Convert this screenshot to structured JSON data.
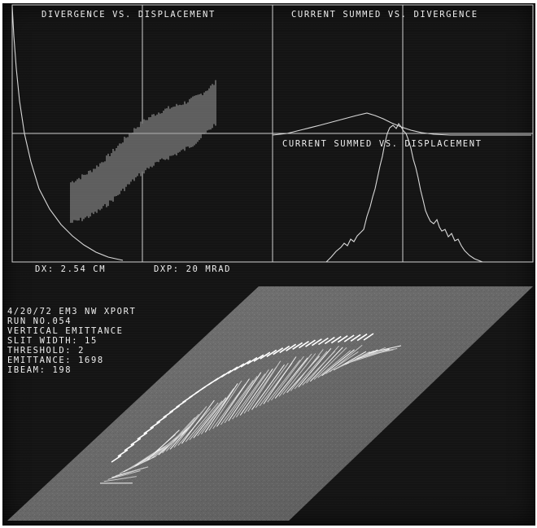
{
  "top_plots": {
    "left_title": "DIVERGENCE VS. DISPLACEMENT",
    "right_title": "CURRENT SUMMED VS. DIVERGENCE",
    "lower_right_title": "CURRENT SUMMED VS. DISPLACEMENT",
    "dx_label": "DX: 2.54 CM",
    "dxp_label": "DXP: 20 MRAD"
  },
  "run_info": {
    "line1": "4/20/72   EM3   NW   XPORT",
    "line2": "RUN NO.054",
    "line3": "VERTICAL EMITTANCE",
    "line4": "SLIT WIDTH: 15",
    "line5": "THRESHOLD: 2",
    "line6": "EMITTANCE: 1698",
    "line7": "IBEAM: 198"
  },
  "colors": {
    "screen": "#141414",
    "phosphor": "#e6e6e6"
  }
}
